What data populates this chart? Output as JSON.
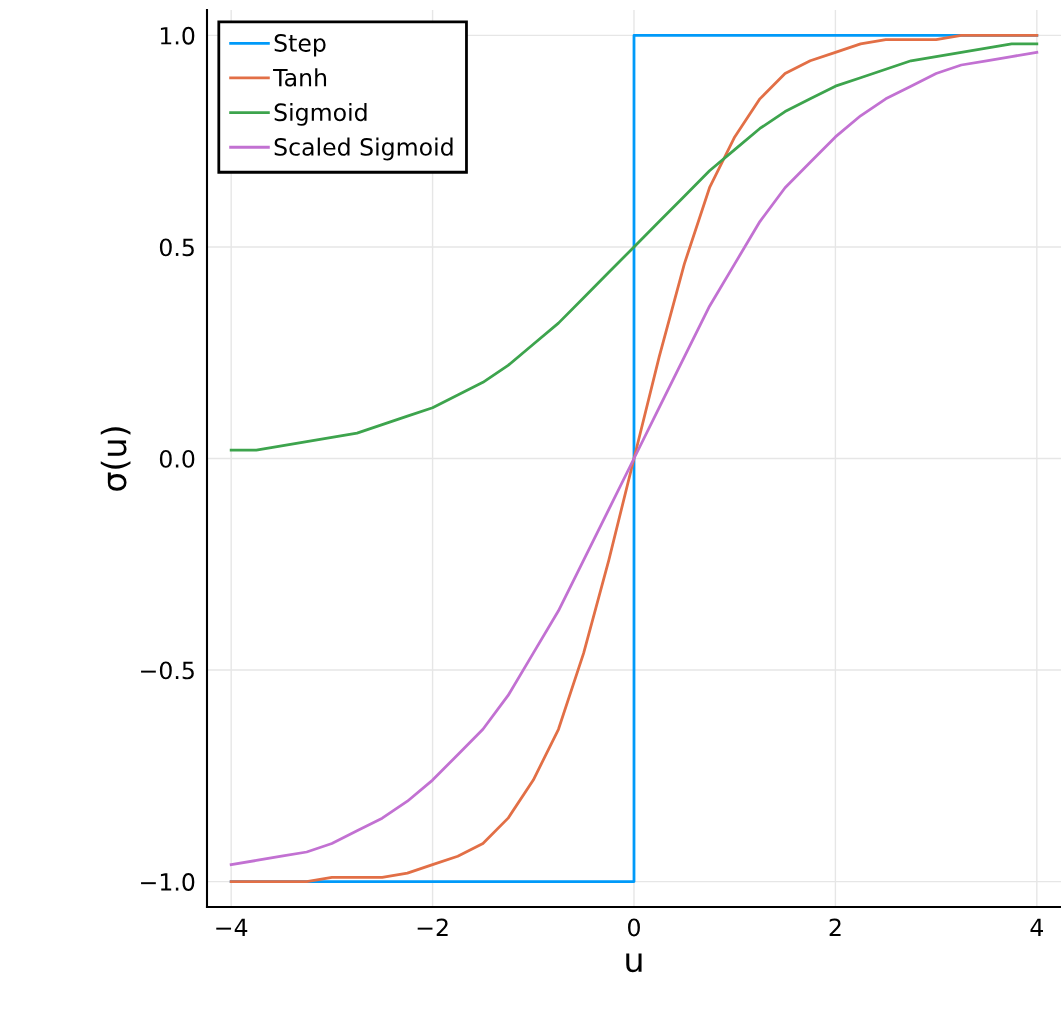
{
  "chart_data": {
    "type": "line",
    "xlabel": "u",
    "ylabel": "σ(u)",
    "x": [
      -4,
      -3.75,
      -3.5,
      -3.25,
      -3,
      -2.75,
      -2.5,
      -2.25,
      -2,
      -1.75,
      -1.5,
      -1.25,
      -1,
      -0.75,
      -0.5,
      -0.25,
      0,
      0.25,
      0.5,
      0.75,
      1,
      1.25,
      1.5,
      1.75,
      2,
      2.25,
      2.5,
      2.75,
      3,
      3.25,
      3.5,
      3.75,
      4
    ],
    "series": [
      {
        "name": "Step",
        "color": "#009af9",
        "x": [
          -4,
          0,
          0,
          4
        ],
        "values": [
          -1,
          -1,
          1,
          1
        ]
      },
      {
        "name": "Tanh",
        "color": "#e26f46",
        "values": [
          -1.0,
          -1.0,
          -1.0,
          -1.0,
          -0.99,
          -0.99,
          -0.99,
          -0.98,
          -0.96,
          -0.94,
          -0.91,
          -0.85,
          -0.76,
          -0.64,
          -0.46,
          -0.24,
          0,
          0.24,
          0.46,
          0.64,
          0.76,
          0.85,
          0.91,
          0.94,
          0.96,
          0.98,
          0.99,
          0.99,
          0.99,
          1.0,
          1.0,
          1.0,
          1.0
        ]
      },
      {
        "name": "Sigmoid",
        "color": "#3da44d",
        "values": [
          0.02,
          0.02,
          0.03,
          0.04,
          0.05,
          0.06,
          0.08,
          0.1,
          0.12,
          0.15,
          0.18,
          0.22,
          0.27,
          0.32,
          0.38,
          0.44,
          0.5,
          0.56,
          0.62,
          0.68,
          0.73,
          0.78,
          0.82,
          0.85,
          0.88,
          0.9,
          0.92,
          0.94,
          0.95,
          0.96,
          0.97,
          0.98,
          0.98
        ]
      },
      {
        "name": "Scaled Sigmoid",
        "color": "#c271d2",
        "values": [
          -0.96,
          -0.95,
          -0.94,
          -0.93,
          -0.91,
          -0.88,
          -0.85,
          -0.81,
          -0.76,
          -0.7,
          -0.64,
          -0.56,
          -0.46,
          -0.36,
          -0.24,
          -0.12,
          0,
          0.12,
          0.24,
          0.36,
          0.46,
          0.56,
          0.64,
          0.7,
          0.76,
          0.81,
          0.85,
          0.88,
          0.91,
          0.93,
          0.94,
          0.95,
          0.96
        ]
      }
    ],
    "xlim": [
      -4.24,
      4.24
    ],
    "ylim": [
      -1.06,
      1.06
    ],
    "xticks": [
      {
        "value": -4,
        "label": "−4"
      },
      {
        "value": -2,
        "label": "−2"
      },
      0,
      2,
      4
    ],
    "yticks": [
      {
        "value": -1,
        "label": "−1.0"
      },
      {
        "value": -0.5,
        "label": "−0.5"
      },
      {
        "value": 0,
        "label": "0.0"
      },
      {
        "value": 0.5,
        "label": "0.5"
      },
      {
        "value": 1,
        "label": "1.0"
      }
    ],
    "grid": true,
    "legend": "top left",
    "line_style": "solid",
    "marker": "none"
  }
}
